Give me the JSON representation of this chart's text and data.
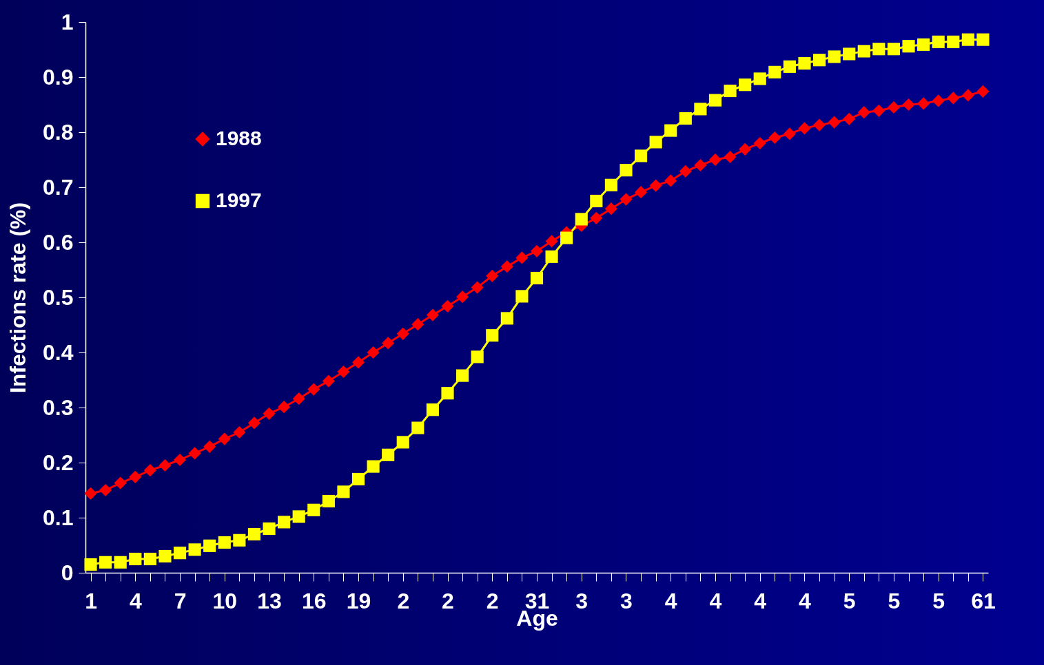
{
  "chart_data": {
    "type": "line",
    "xlabel": "Age",
    "ylabel": "Infections rate (%)",
    "categories": [
      "1",
      null,
      null,
      "4",
      null,
      null,
      "7",
      null,
      null,
      "10",
      null,
      null,
      "13",
      null,
      null,
      "16",
      null,
      null,
      "19",
      null,
      null,
      "2",
      null,
      null,
      "2",
      null,
      null,
      "2",
      null,
      null,
      "31",
      null,
      null,
      "3",
      null,
      null,
      "3",
      null,
      null,
      "4",
      null,
      null,
      "4",
      null,
      null,
      "4",
      null,
      null,
      "4",
      null,
      null,
      "5",
      null,
      null,
      "5",
      null,
      null,
      "5",
      null,
      null,
      "61"
    ],
    "series": [
      {
        "name": "1988",
        "color": "#ff0000",
        "marker": "diamond",
        "values": [
          0.144,
          0.15,
          0.163,
          0.174,
          0.186,
          0.195,
          0.205,
          0.217,
          0.229,
          0.243,
          0.255,
          0.272,
          0.289,
          0.301,
          0.316,
          0.333,
          0.348,
          0.365,
          0.382,
          0.4,
          0.417,
          0.434,
          0.451,
          0.468,
          0.484,
          0.501,
          0.518,
          0.539,
          0.556,
          0.572,
          0.584,
          0.602,
          0.618,
          0.63,
          0.644,
          0.661,
          0.678,
          0.691,
          0.703,
          0.712,
          0.729,
          0.74,
          0.75,
          0.755,
          0.769,
          0.78,
          0.79,
          0.797,
          0.807,
          0.813,
          0.818,
          0.824,
          0.836,
          0.839,
          0.845,
          0.85,
          0.852,
          0.857,
          0.862,
          0.867,
          0.874
        ]
      },
      {
        "name": "1997",
        "color": "#ffff00",
        "marker": "square",
        "values": [
          0.015,
          0.019,
          0.019,
          0.025,
          0.025,
          0.03,
          0.036,
          0.042,
          0.049,
          0.055,
          0.059,
          0.07,
          0.08,
          0.092,
          0.102,
          0.114,
          0.13,
          0.147,
          0.17,
          0.193,
          0.214,
          0.237,
          0.263,
          0.296,
          0.326,
          0.358,
          0.392,
          0.431,
          0.462,
          0.502,
          0.535,
          0.574,
          0.608,
          0.642,
          0.675,
          0.704,
          0.731,
          0.757,
          0.782,
          0.803,
          0.825,
          0.842,
          0.858,
          0.875,
          0.886,
          0.897,
          0.909,
          0.919,
          0.925,
          0.931,
          0.937,
          0.942,
          0.947,
          0.951,
          0.951,
          0.956,
          0.959,
          0.964,
          0.964,
          0.968,
          0.968
        ]
      }
    ],
    "ylim": [
      0,
      1
    ],
    "yticks": [
      0,
      0.1,
      0.2,
      0.3,
      0.4,
      0.5,
      0.6,
      0.7,
      0.8,
      0.9,
      1
    ],
    "grid": false,
    "legend": "top left",
    "line_style": "solid"
  }
}
